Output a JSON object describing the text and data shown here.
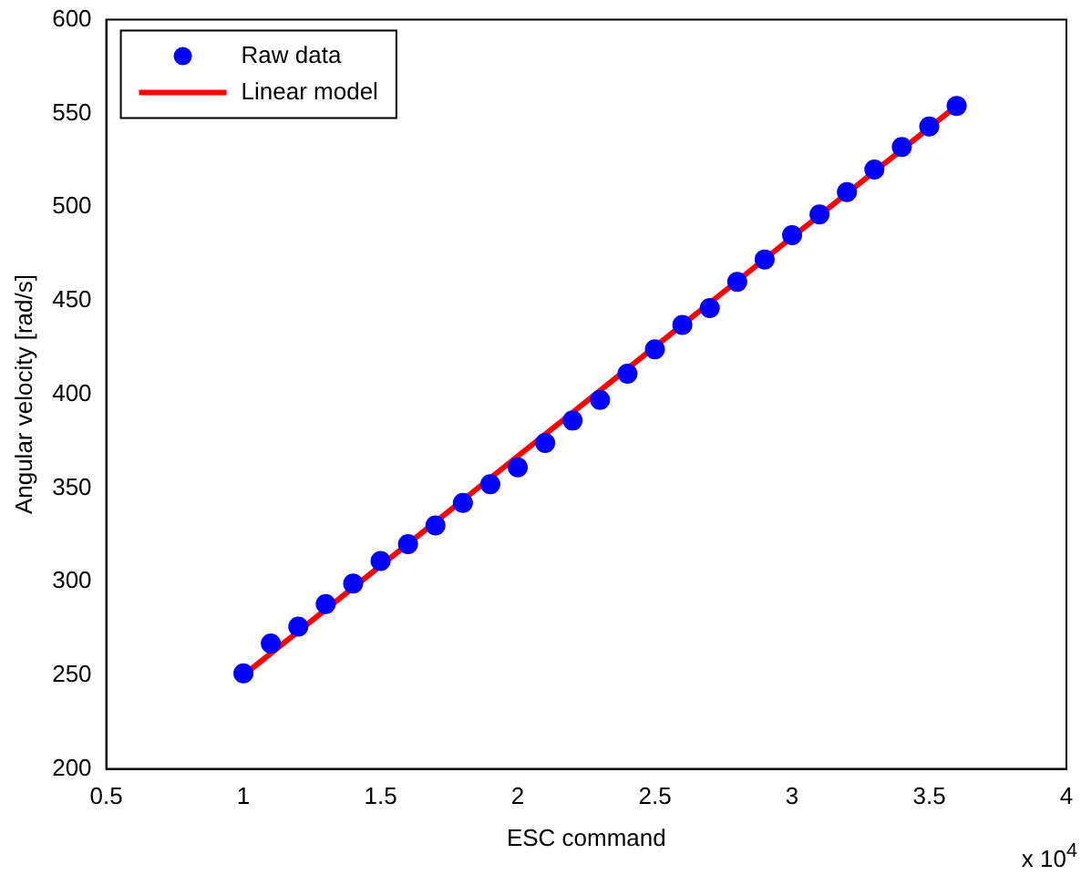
{
  "chart_data": {
    "type": "scatter",
    "xlabel": "ESC command",
    "ylabel": "Angular velocity [rad/s]",
    "annotations": [
      "x 10$^{4}$"
    ],
    "xlim": [
      0.5,
      4
    ],
    "xticks": [
      0.5,
      1,
      1.5,
      2,
      2.5,
      3,
      3.5,
      4
    ],
    "ylim": [
      200,
      600
    ],
    "yticks": [
      200,
      250,
      300,
      350,
      400,
      450,
      500,
      550,
      600
    ],
    "grid": false,
    "legend": "top left",
    "marker": "circle",
    "series": [
      {
        "name": "Raw data",
        "color": "#0000ff",
        "x": [
          1,
          1.1,
          1.2,
          1.3,
          1.4,
          1.5,
          1.6,
          1.7,
          1.8,
          1.9,
          2,
          2.1,
          2.2,
          2.3,
          2.4,
          2.5,
          2.6,
          2.7,
          2.8,
          2.9,
          3,
          3.1,
          3.2,
          3.3,
          3.4,
          3.5,
          3.6
        ],
        "values": [
          251,
          267,
          276,
          288,
          299,
          311,
          320,
          330,
          342,
          352,
          361,
          374,
          386,
          397,
          411,
          424,
          437,
          446,
          460,
          472,
          485,
          496,
          508,
          520,
          532,
          543,
          554
        ]
      },
      {
        "name": "Linear model",
        "type": "line",
        "color": "#ff0000",
        "marker": "none",
        "line_style": "solid",
        "x": [
          1,
          3.6
        ],
        "values": [
          250,
          554
        ]
      }
    ]
  }
}
